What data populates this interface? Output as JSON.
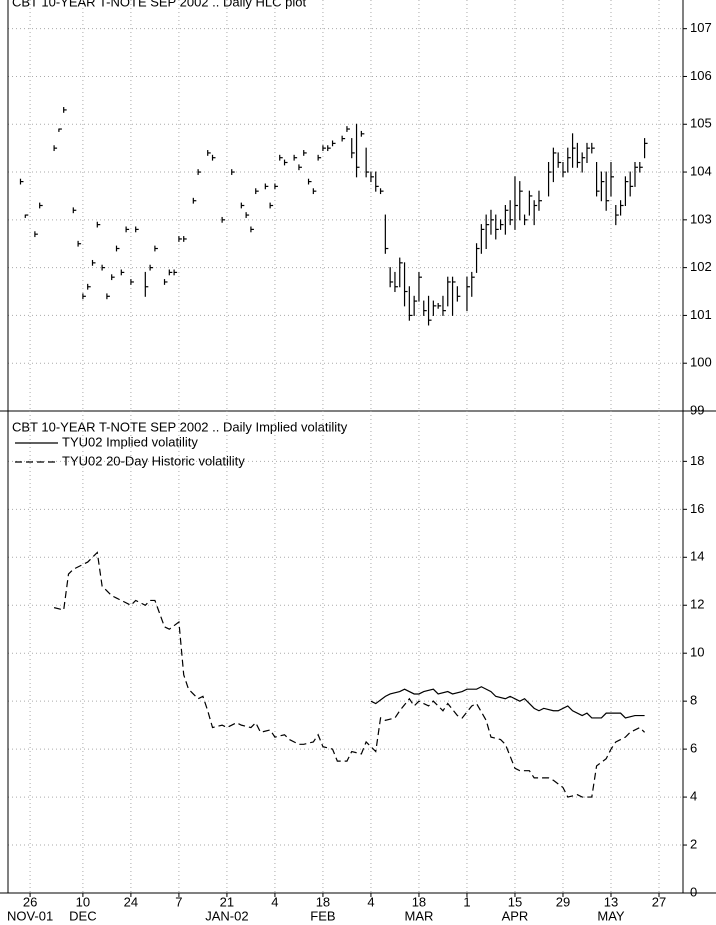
{
  "chart_data": [
    {
      "type": "hlc",
      "title": "CBT 10-YEAR T-NOTE SEP 2002 .. Daily HLC plot",
      "color": "#000000",
      "x": [
        -2,
        -1,
        1,
        2,
        5,
        6,
        7,
        9,
        10,
        11,
        12,
        13,
        14,
        15,
        16,
        17,
        18,
        19,
        20,
        21,
        22,
        24,
        25,
        26,
        28,
        29,
        30,
        31,
        32,
        34,
        35,
        37,
        38,
        40,
        42,
        44,
        45,
        46,
        47,
        49,
        50,
        51,
        52,
        53,
        55,
        56,
        57,
        58,
        59,
        60,
        61,
        62,
        63,
        65,
        66,
        67,
        68,
        69,
        70,
        71,
        72,
        73,
        74,
        75,
        76,
        77,
        78,
        79,
        80,
        81,
        82,
        83,
        84,
        85,
        86,
        87,
        88,
        89,
        91,
        92,
        93,
        94,
        95,
        96,
        97,
        98,
        99,
        100,
        101,
        102,
        103,
        104,
        105,
        106,
        108,
        109,
        110,
        111,
        112,
        113,
        114,
        115,
        116,
        117,
        118,
        119,
        120,
        121,
        122,
        123,
        124,
        125,
        126,
        127,
        128
      ],
      "high": [
        103.85,
        103.1,
        102.75,
        103.35,
        104.55,
        104.9,
        105.35,
        103.25,
        102.55,
        101.45,
        101.65,
        102.15,
        102.95,
        102.05,
        101.45,
        101.85,
        102.45,
        101.95,
        102.85,
        101.75,
        102.85,
        101.9,
        102.05,
        102.45,
        101.75,
        101.95,
        101.95,
        102.65,
        102.65,
        103.45,
        104.05,
        104.45,
        104.35,
        103.05,
        104.05,
        103.35,
        103.15,
        102.85,
        103.65,
        103.75,
        103.35,
        103.75,
        104.35,
        104.25,
        104.35,
        104.15,
        104.45,
        103.85,
        103.65,
        104.35,
        104.55,
        104.55,
        104.65,
        104.75,
        104.95,
        104.7,
        105.0,
        104.85,
        104.5,
        104.0,
        104.0,
        103.65,
        103.1,
        102.0,
        101.9,
        102.2,
        102.1,
        101.6,
        101.4,
        101.9,
        101.3,
        101.4,
        101.3,
        101.25,
        101.4,
        101.8,
        101.8,
        101.6,
        101.8,
        101.9,
        102.5,
        102.9,
        103.1,
        103.2,
        103.1,
        103.0,
        103.3,
        103.4,
        103.9,
        103.8,
        103.1,
        103.6,
        103.4,
        103.6,
        104.2,
        104.5,
        104.4,
        104.2,
        104.5,
        104.8,
        104.6,
        104.4,
        104.6,
        104.6,
        104.2,
        104.0,
        104.0,
        104.2,
        103.3,
        103.4,
        103.9,
        104.0,
        104.2,
        104.2,
        104.7
      ],
      "low": [
        103.75,
        103.05,
        102.65,
        103.25,
        104.45,
        104.85,
        105.25,
        103.15,
        102.45,
        101.35,
        101.55,
        102.05,
        102.85,
        101.95,
        101.35,
        101.75,
        102.35,
        101.85,
        102.75,
        101.65,
        102.75,
        101.4,
        101.95,
        102.35,
        101.65,
        101.85,
        101.85,
        102.55,
        102.55,
        103.35,
        103.95,
        104.35,
        104.25,
        102.95,
        103.95,
        103.25,
        103.05,
        102.75,
        103.55,
        103.65,
        103.25,
        103.65,
        104.25,
        104.15,
        104.25,
        104.05,
        104.35,
        103.75,
        103.55,
        104.25,
        104.45,
        104.45,
        104.55,
        104.65,
        104.85,
        104.3,
        103.9,
        104.75,
        103.9,
        103.8,
        103.6,
        103.55,
        102.3,
        101.6,
        101.5,
        101.6,
        101.2,
        100.9,
        101.0,
        101.3,
        101.0,
        100.8,
        101.0,
        101.15,
        101.0,
        101.2,
        101.0,
        101.3,
        101.1,
        101.4,
        101.9,
        102.3,
        102.4,
        102.7,
        102.6,
        102.8,
        102.7,
        102.9,
        102.8,
        103.0,
        102.9,
        103.1,
        102.9,
        103.2,
        103.5,
        103.8,
        104.1,
        103.9,
        104.0,
        104.1,
        104.1,
        104.0,
        104.2,
        104.4,
        103.5,
        103.4,
        103.2,
        103.5,
        102.9,
        103.1,
        103.3,
        103.5,
        103.7,
        104.0,
        104.3
      ],
      "close": [
        103.8,
        103.1,
        102.7,
        103.3,
        104.5,
        104.9,
        105.3,
        103.2,
        102.5,
        101.4,
        101.6,
        102.1,
        102.9,
        102.0,
        101.4,
        101.8,
        102.4,
        101.9,
        102.8,
        101.7,
        102.8,
        101.6,
        102.0,
        102.4,
        101.7,
        101.9,
        101.9,
        102.6,
        102.6,
        103.4,
        104.0,
        104.4,
        104.3,
        103.0,
        104.0,
        103.3,
        103.1,
        102.8,
        103.6,
        103.7,
        103.3,
        103.7,
        104.3,
        104.2,
        104.3,
        104.1,
        104.4,
        103.8,
        103.6,
        104.3,
        104.5,
        104.5,
        104.6,
        104.7,
        104.9,
        104.4,
        104.1,
        104.8,
        104.0,
        103.9,
        103.7,
        103.6,
        102.4,
        101.7,
        101.6,
        102.1,
        101.5,
        101.0,
        101.3,
        101.8,
        101.1,
        100.9,
        101.2,
        101.2,
        101.1,
        101.7,
        101.7,
        101.4,
        101.6,
        101.8,
        102.4,
        102.8,
        102.9,
        103.0,
        102.8,
        102.9,
        103.2,
        103.0,
        103.3,
        103.6,
        103.0,
        103.5,
        103.3,
        103.4,
        104.0,
        104.4,
        104.2,
        104.0,
        104.3,
        104.5,
        104.2,
        104.3,
        104.5,
        104.5,
        103.6,
        103.8,
        103.4,
        103.9,
        103.1,
        103.3,
        103.8,
        103.7,
        104.1,
        104.1,
        104.6
      ],
      "xlim": [
        -4.6,
        136
      ],
      "ylim": [
        99,
        107.6
      ],
      "yticks": [
        99,
        100,
        101,
        102,
        103,
        104,
        105,
        106,
        107
      ],
      "grid": true
    },
    {
      "type": "line",
      "title": "CBT 10-YEAR T-NOTE SEP 2002 .. Daily Implied volatility",
      "series": [
        {
          "name": "TYU02 Implied volatility",
          "color": "#000000",
          "dashed": false,
          "x": [
            71,
            72,
            74,
            75,
            77,
            78,
            80,
            81,
            82,
            84,
            85,
            87,
            88,
            90,
            91,
            93,
            94,
            96,
            97,
            99,
            100,
            102,
            103,
            105,
            106,
            107,
            109,
            110,
            112,
            113,
            115,
            116,
            117,
            119,
            120,
            122,
            123,
            124,
            126,
            128
          ],
          "values": [
            8.0,
            7.9,
            8.2,
            8.3,
            8.4,
            8.5,
            8.3,
            8.3,
            8.4,
            8.5,
            8.3,
            8.4,
            8.3,
            8.4,
            8.5,
            8.5,
            8.6,
            8.4,
            8.2,
            8.1,
            8.2,
            8.0,
            8.1,
            7.7,
            7.6,
            7.7,
            7.6,
            7.6,
            7.8,
            7.6,
            7.4,
            7.5,
            7.3,
            7.3,
            7.5,
            7.5,
            7.5,
            7.3,
            7.4,
            7.4
          ]
        },
        {
          "name": "TYU02 20-Day Historic volatility",
          "color": "#000000",
          "dashed": true,
          "x": [
            5,
            7,
            8,
            9,
            11,
            12,
            14,
            15,
            17,
            18,
            19,
            21,
            22,
            24,
            25,
            26,
            28,
            29,
            31,
            32,
            33,
            35,
            36,
            37,
            38,
            40,
            41,
            43,
            44,
            46,
            47,
            48,
            50,
            51,
            53,
            54,
            56,
            57,
            59,
            60,
            61,
            63,
            64,
            66,
            67,
            69,
            70,
            72,
            73,
            74,
            76,
            77,
            79,
            80,
            81,
            83,
            84,
            86,
            87,
            89,
            90,
            92,
            93,
            95,
            96,
            98,
            99,
            101,
            102,
            104,
            105,
            106,
            108,
            109,
            111,
            112,
            114,
            115,
            117,
            118,
            120,
            121,
            122,
            124,
            125,
            127,
            128
          ],
          "values": [
            11.9,
            11.8,
            13.3,
            13.5,
            13.7,
            13.8,
            14.2,
            12.8,
            12.4,
            12.3,
            12.2,
            12.0,
            12.2,
            12.0,
            12.2,
            12.2,
            11.1,
            11.0,
            11.3,
            9.1,
            8.5,
            8.1,
            8.2,
            7.6,
            6.9,
            7.0,
            6.9,
            7.1,
            7.0,
            6.9,
            7.1,
            6.7,
            6.8,
            6.5,
            6.6,
            6.4,
            6.2,
            6.2,
            6.3,
            6.6,
            6.1,
            6.0,
            5.5,
            5.5,
            5.9,
            5.8,
            6.3,
            5.9,
            7.3,
            7.2,
            7.3,
            7.6,
            8.1,
            7.8,
            8.0,
            7.8,
            8.0,
            7.6,
            7.9,
            7.4,
            7.3,
            7.8,
            7.9,
            7.2,
            6.5,
            6.4,
            6.2,
            5.2,
            5.1,
            5.1,
            4.8,
            4.8,
            4.8,
            4.7,
            4.4,
            4.0,
            4.1,
            4.0,
            4.0,
            5.3,
            5.6,
            6.0,
            6.3,
            6.5,
            6.7,
            6.9,
            6.7
          ]
        }
      ],
      "xlim": [
        -4.6,
        136
      ],
      "ylim": [
        0,
        20.1
      ],
      "yticks": [
        0,
        2,
        4,
        6,
        8,
        10,
        12,
        14,
        16,
        18
      ],
      "grid": true,
      "xticks": [
        {
          "value": 0,
          "label": "26"
        },
        {
          "value": 11,
          "label": "10"
        },
        {
          "value": 21,
          "label": "24"
        },
        {
          "value": 31,
          "label": "7"
        },
        {
          "value": 41,
          "label": "21"
        },
        {
          "value": 51,
          "label": "4"
        },
        {
          "value": 61,
          "label": "18"
        },
        {
          "value": 71,
          "label": "4"
        },
        {
          "value": 81,
          "label": "18"
        },
        {
          "value": 91,
          "label": "1"
        },
        {
          "value": 101,
          "label": "15"
        },
        {
          "value": 111,
          "label": "29"
        },
        {
          "value": 121,
          "label": "13"
        },
        {
          "value": 131,
          "label": "27"
        }
      ],
      "month_labels": [
        {
          "value": 0,
          "label": "NOV-01"
        },
        {
          "value": 11,
          "label": "DEC"
        },
        {
          "value": 41,
          "label": "JAN-02"
        },
        {
          "value": 61,
          "label": "FEB"
        },
        {
          "value": 81,
          "label": "MAR"
        },
        {
          "value": 101,
          "label": "APR"
        },
        {
          "value": 121,
          "label": "MAY"
        }
      ]
    }
  ]
}
